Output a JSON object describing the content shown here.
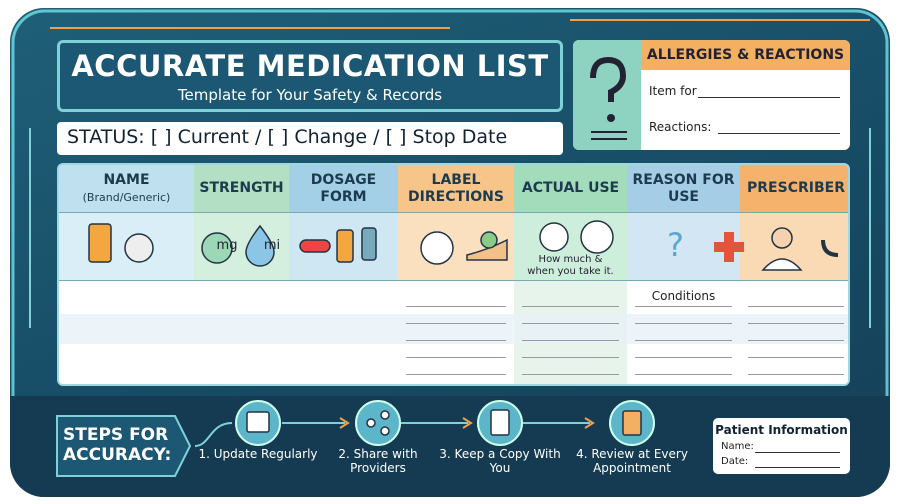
{
  "header": {
    "title": "ACCURATE MEDICATION LIST",
    "subtitle": "Template for Your Safety & Records"
  },
  "status": "STATUS: [ ] Current / [ ] Change / [ ] Stop Date",
  "allergies": {
    "title": "ALLERGIES & REACTIONS",
    "fields": [
      "Item for",
      "Reactions:"
    ]
  },
  "table": {
    "columns": [
      {
        "header": "NAME",
        "subheader": "(Brand/Generic)"
      },
      {
        "header": "STRENGTH",
        "icon_labels": [
          "mg",
          "mi"
        ]
      },
      {
        "header": "DOSAGE FORM"
      },
      {
        "header": "LABEL DIRECTIONS"
      },
      {
        "header": "ACTUAL USE",
        "note": "How much & when you take it."
      },
      {
        "header": "REASON FOR USE",
        "cell": "Conditions"
      },
      {
        "header": "PRESCRIBER"
      }
    ]
  },
  "steps": {
    "title": "STEPS FOR ACCURACY:",
    "items": [
      "1. Update Regularly",
      "2. Share with Providers",
      "3. Keep a Copy With You",
      "4. Review at Every Appointment"
    ]
  },
  "patient": {
    "title": "Patient Information",
    "fields": [
      "Name:",
      "Date:"
    ]
  }
}
